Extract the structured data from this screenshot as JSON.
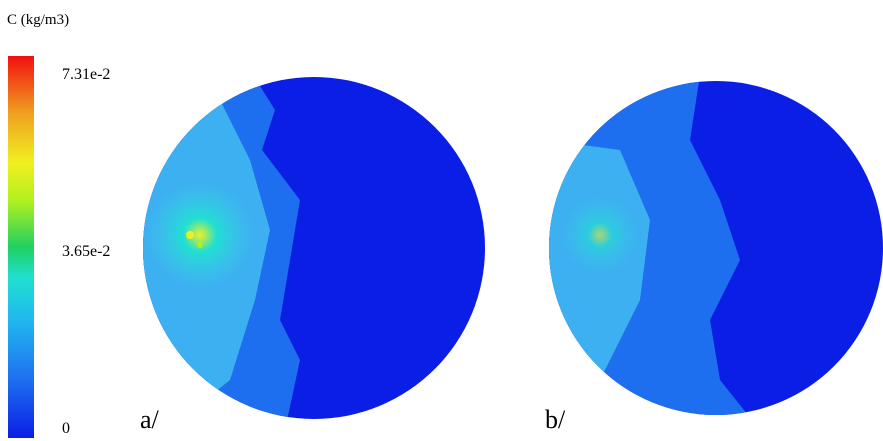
{
  "colorbar": {
    "title": "C (kg/m3)",
    "labels": [
      "7.31e-2",
      "3.65e-2",
      "0"
    ]
  },
  "panels": [
    {
      "label": "a/"
    },
    {
      "label": "b/"
    }
  ]
}
